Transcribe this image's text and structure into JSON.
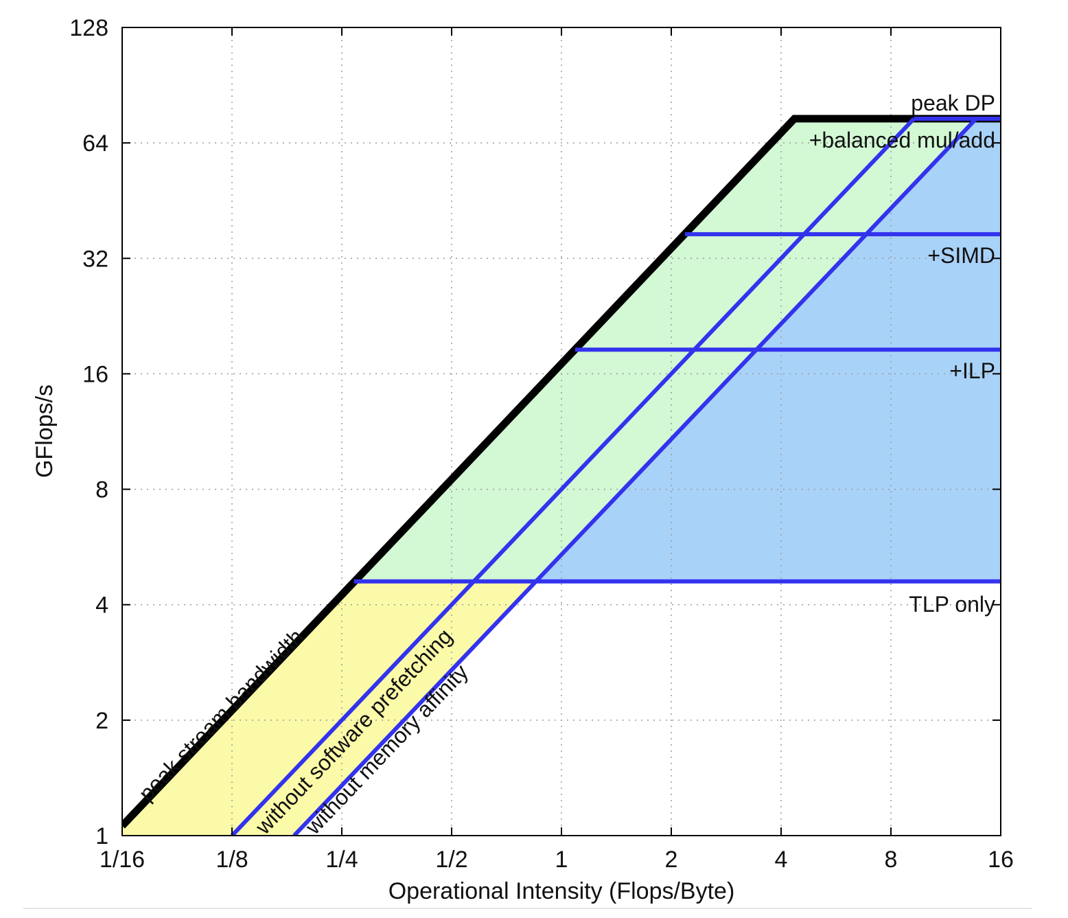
{
  "chart_data": {
    "type": "line",
    "title": "",
    "xlabel": "Operational Intensity (Flops/Byte)",
    "ylabel": "GFlops/s",
    "x_scale": "log2",
    "y_scale": "log2",
    "xlim": [
      0.0625,
      16
    ],
    "ylim": [
      1,
      128
    ],
    "x_ticks": [
      {
        "value": 0.0625,
        "label": "1/16"
      },
      {
        "value": 0.125,
        "label": "1/8"
      },
      {
        "value": 0.25,
        "label": "1/4"
      },
      {
        "value": 0.5,
        "label": "1/2"
      },
      {
        "value": 1,
        "label": "1"
      },
      {
        "value": 2,
        "label": "2"
      },
      {
        "value": 4,
        "label": "4"
      },
      {
        "value": 8,
        "label": "8"
      },
      {
        "value": 16,
        "label": "16"
      }
    ],
    "y_ticks": [
      {
        "value": 1,
        "label": "1"
      },
      {
        "value": 2,
        "label": "2"
      },
      {
        "value": 4,
        "label": "4"
      },
      {
        "value": 8,
        "label": "8"
      },
      {
        "value": 16,
        "label": "16"
      },
      {
        "value": 32,
        "label": "32"
      },
      {
        "value": 64,
        "label": "64"
      },
      {
        "value": 128,
        "label": "128"
      }
    ],
    "grid": true,
    "colors": {
      "roof": "#000000",
      "ceiling": "#3333ee",
      "fill_yellow": "#fbfaa8",
      "fill_green": "#d2f8d4",
      "fill_blue": "#a9d2f8"
    },
    "bandwidth_ceilings": [
      {
        "name": "peak stream bandwidth",
        "gflops_per_flop_byte": 17.0,
        "style": "roof"
      },
      {
        "name": "without software prefetching",
        "gflops_per_flop_byte": 8.0,
        "style": "ceiling"
      },
      {
        "name": "without memory affinity",
        "gflops_per_flop_byte": 5.4,
        "style": "ceiling"
      }
    ],
    "compute_ceilings": [
      {
        "name": "peak DP",
        "gflops": 74,
        "style": "roof"
      },
      {
        "name": "+balanced mul/add",
        "gflops": 74,
        "style": "ceiling"
      },
      {
        "name": "+SIMD",
        "gflops": 37,
        "style": "ceiling"
      },
      {
        "name": "+ILP",
        "gflops": 18.5,
        "style": "ceiling"
      },
      {
        "name": "TLP only",
        "gflops": 4.6,
        "style": "ceiling"
      }
    ],
    "series": [
      {
        "name": "peak stream bandwidth",
        "points": [
          [
            0.0625,
            1.06
          ],
          [
            4.35,
            74
          ],
          [
            16,
            74
          ]
        ]
      },
      {
        "name": "without software prefetching",
        "points": [
          [
            0.125,
            1
          ],
          [
            9.25,
            74
          ]
        ]
      },
      {
        "name": "without memory affinity",
        "points": [
          [
            0.185,
            1
          ],
          [
            13.7,
            74
          ]
        ]
      },
      {
        "name": "+balanced mul/add",
        "points": [
          [
            9.25,
            74
          ],
          [
            16,
            74
          ]
        ]
      },
      {
        "name": "+SIMD",
        "points": [
          [
            2.18,
            37
          ],
          [
            16,
            37
          ]
        ]
      },
      {
        "name": "+ILP",
        "points": [
          [
            1.09,
            18.5
          ],
          [
            16,
            18.5
          ]
        ]
      },
      {
        "name": "TLP only",
        "points": [
          [
            0.27,
            4.6
          ],
          [
            16,
            4.6
          ]
        ]
      }
    ]
  }
}
